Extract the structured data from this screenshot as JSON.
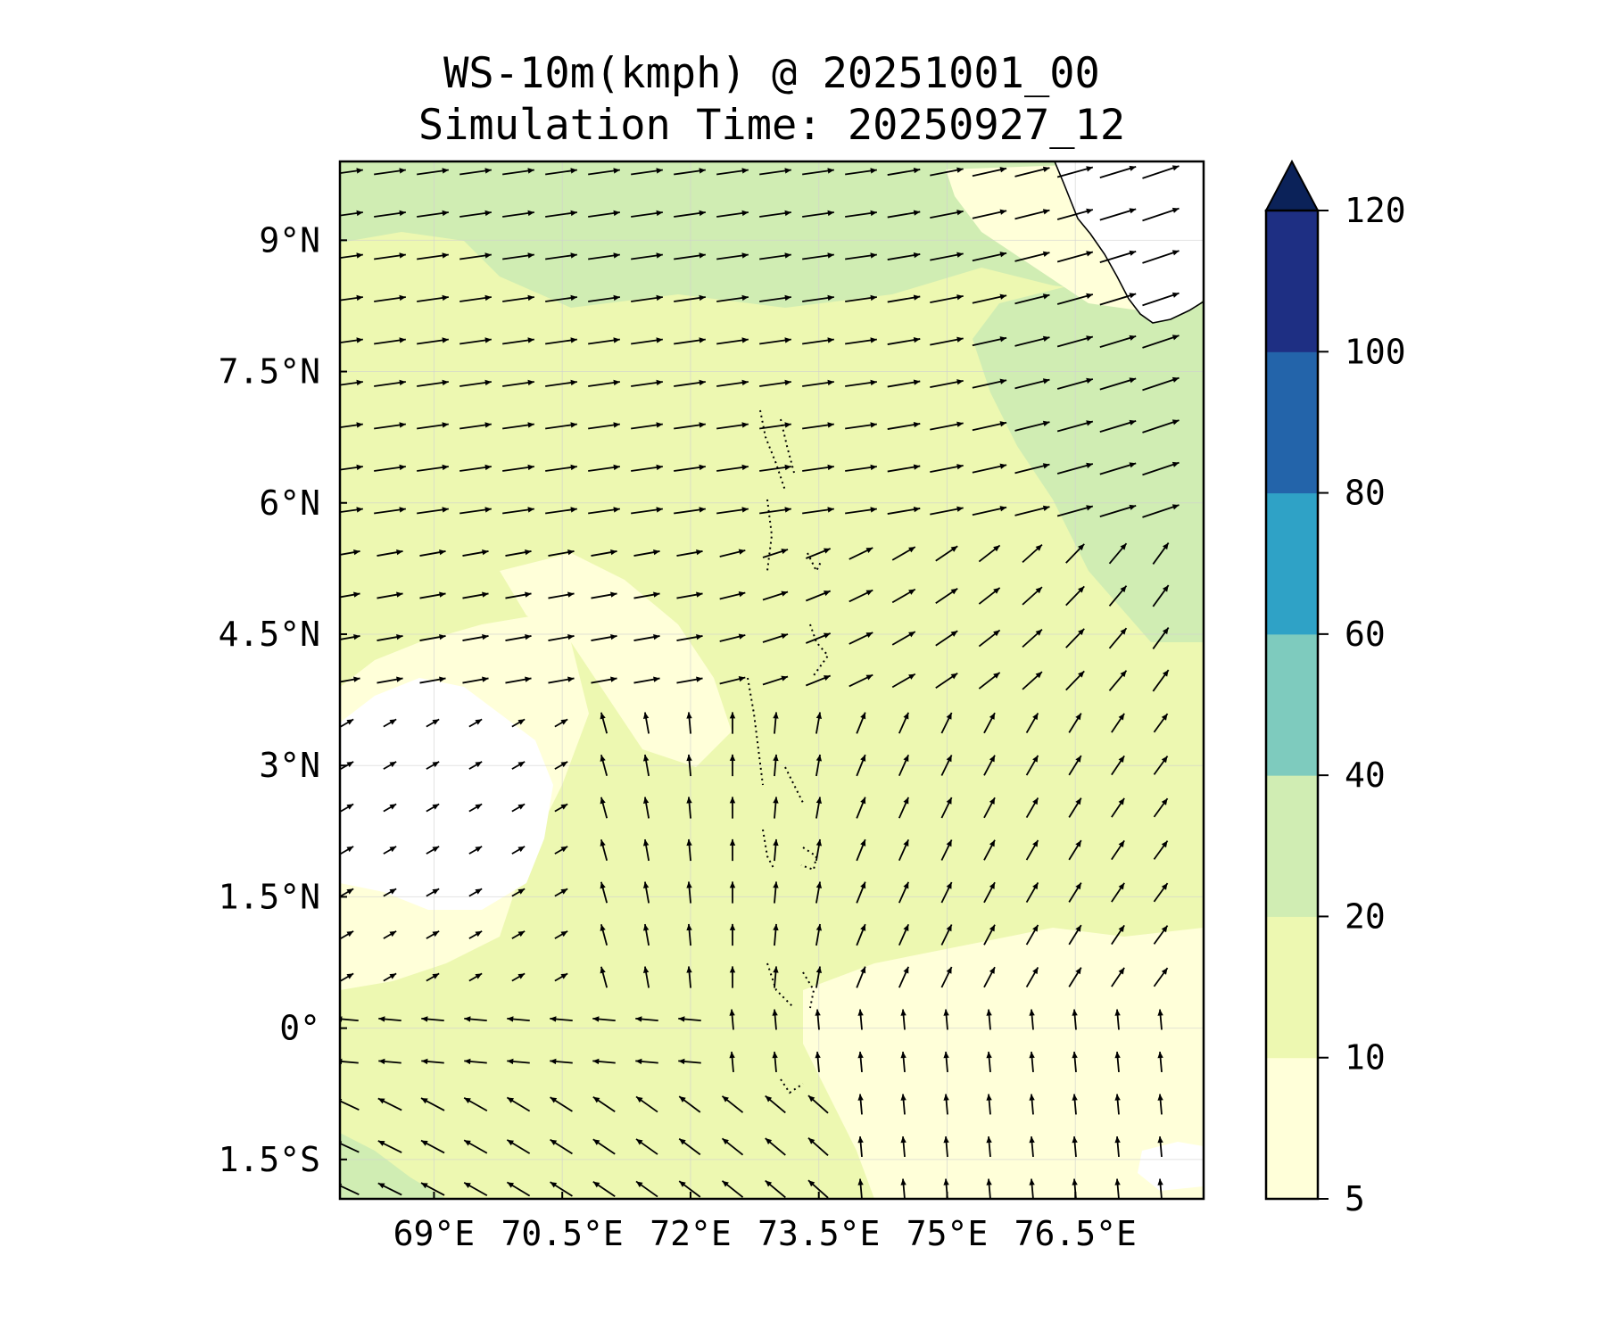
{
  "title": {
    "line1": "WS-10m(kmph) @ 20251001_00",
    "line2": "Simulation Time: 20250927_12"
  },
  "map": {
    "lon_range": [
      67.9,
      78.0
    ],
    "lat_range": [
      -1.95,
      9.9
    ],
    "lon_ticks": [
      {
        "value": 69.0,
        "label": "69°E"
      },
      {
        "value": 70.5,
        "label": "70.5°E"
      },
      {
        "value": 72.0,
        "label": "72°E"
      },
      {
        "value": 73.5,
        "label": "73.5°E"
      },
      {
        "value": 75.0,
        "label": "75°E"
      },
      {
        "value": 76.5,
        "label": "76.5°E"
      }
    ],
    "lat_ticks": [
      {
        "value": 9.0,
        "label": "9°N"
      },
      {
        "value": 7.5,
        "label": "7.5°N"
      },
      {
        "value": 6.0,
        "label": "6°N"
      },
      {
        "value": 4.5,
        "label": "4.5°N"
      },
      {
        "value": 3.0,
        "label": "3°N"
      },
      {
        "value": 1.5,
        "label": "1.5°N"
      },
      {
        "value": 0.0,
        "label": "0°"
      },
      {
        "value": -1.5,
        "label": "1.5°S"
      }
    ]
  },
  "colorbar": {
    "extend": "max",
    "extend_color": "#0b2259",
    "levels": [
      {
        "value": 5,
        "label": "5"
      },
      {
        "value": 10,
        "label": "10"
      },
      {
        "value": 20,
        "label": "20"
      },
      {
        "value": 40,
        "label": "40"
      },
      {
        "value": 60,
        "label": "60"
      },
      {
        "value": 80,
        "label": "80"
      },
      {
        "value": 100,
        "label": "100"
      },
      {
        "value": 120,
        "label": "120"
      }
    ],
    "colors": [
      "#ffffd9",
      "#edf8b1",
      "#d0edb3",
      "#7ecbbe",
      "#2fa2c6",
      "#2364aa",
      "#1e2f83"
    ]
  },
  "chart_data": {
    "type": "heatmap",
    "title": "WS-10m(kmph) @ 20251001_00 / Simulation Time: 20250927_12",
    "variable": "WS-10m(kmph)",
    "regions": [
      {
        "level_range": [
          20,
          40
        ],
        "area": "northern band 8.8–9.9°N, 70.5–77°E"
      },
      {
        "level_range": [
          20,
          40
        ],
        "area": "north-east 4.5–8.8°N, 75.2–78°E"
      },
      {
        "level_range": [
          0,
          5
        ],
        "area": "west 1.0–4.5°N, 67.9–70.3°E"
      },
      {
        "level_range": [
          0,
          5
        ],
        "area": "Sri Lanka coast 8.4–9.9°N, 77.0–77.8°E"
      },
      {
        "level_range": [
          5,
          10
        ],
        "area": "south-east -1.9–0.5°N, 73.5–78°E"
      },
      {
        "level_range": [
          10,
          20
        ],
        "area": "rest of domain"
      }
    ]
  },
  "icons": [
    "wind-vector-arrow",
    "colorbar-extend-triangle"
  ]
}
